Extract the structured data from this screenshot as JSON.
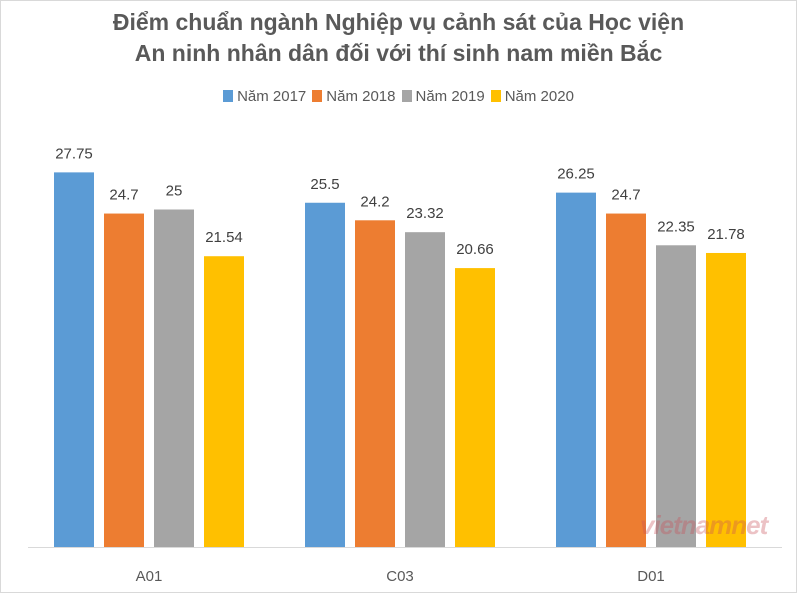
{
  "chart_data": {
    "type": "bar",
    "title_lines": [
      "Điểm chuẩn ngành Nghiệp vụ cảnh sát của Học viện",
      "An ninh nhân dân đối với thí sinh nam miền Bắc"
    ],
    "categories": [
      "A01",
      "C03",
      "D01"
    ],
    "series": [
      {
        "name": "Năm 2017",
        "color": "#5b9bd5",
        "values": [
          27.75,
          25.5,
          26.25
        ]
      },
      {
        "name": "Năm 2018",
        "color": "#ed7d31",
        "values": [
          24.7,
          24.2,
          24.7
        ]
      },
      {
        "name": "Năm 2019",
        "color": "#a5a5a5",
        "values": [
          25,
          23.32,
          22.35
        ]
      },
      {
        "name": "Năm 2020",
        "color": "#ffc000",
        "values": [
          21.54,
          20.66,
          21.78
        ]
      }
    ],
    "data_labels": [
      [
        "27.75",
        "25.5",
        "26.25"
      ],
      [
        "24.7",
        "24.2",
        "24.7"
      ],
      [
        "25",
        "23.32",
        "22.35"
      ],
      [
        "21.54",
        "20.66",
        "21.78"
      ]
    ],
    "ylim": [
      0,
      30
    ],
    "grid": false,
    "legend_position": "top"
  },
  "watermark": "vietnamnet"
}
